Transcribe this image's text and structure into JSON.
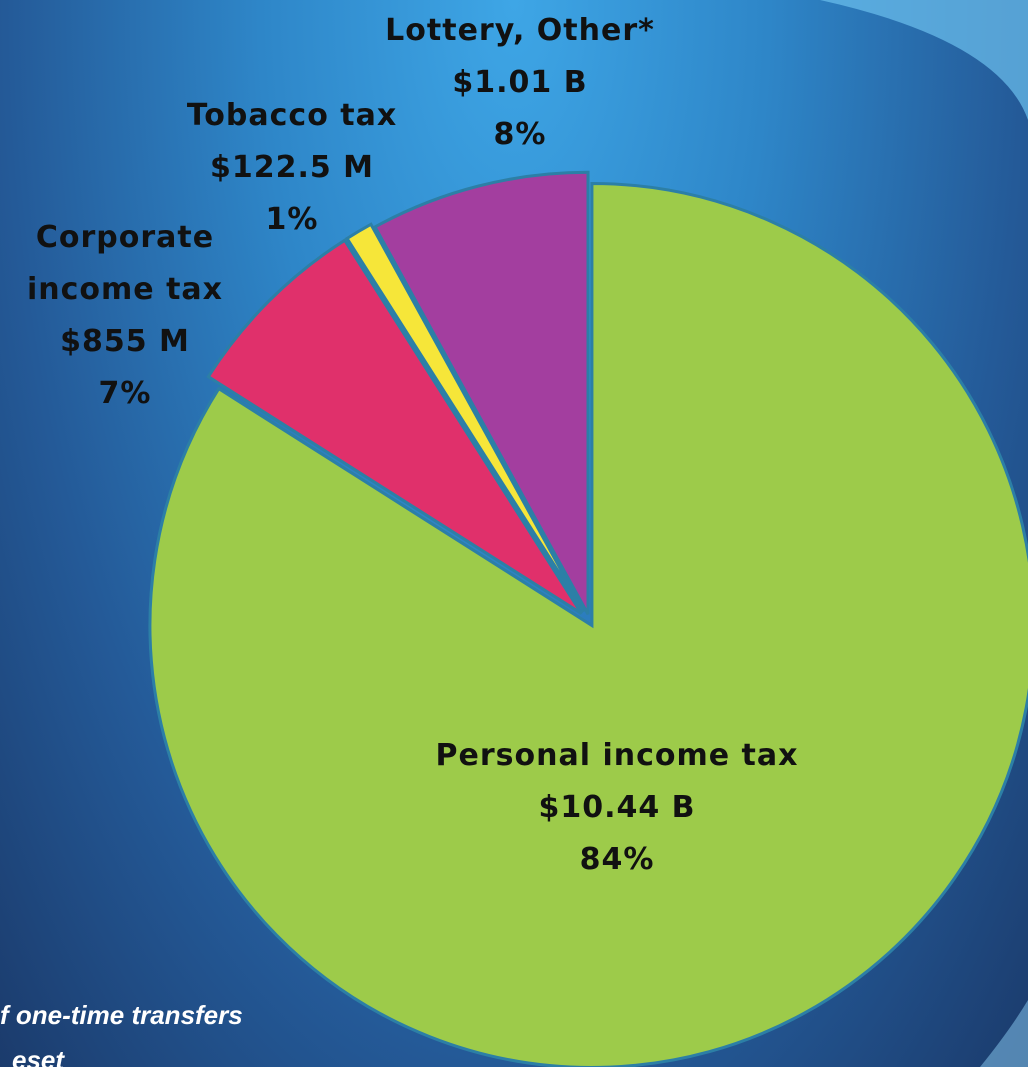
{
  "chart_data": {
    "type": "pie",
    "categories": [
      "Personal income tax",
      "Corporate\nincome tax",
      "Tobacco tax",
      "Lottery, Other*"
    ],
    "amount_labels": [
      "$10.44 B",
      "$855 M",
      "$122.5 M",
      "$1.01 B"
    ],
    "values": [
      84,
      7,
      1,
      8
    ],
    "value_labels": [
      "84%",
      "7%",
      "1%",
      "8%"
    ],
    "colors": [
      "#9dcb4a",
      "#e0306b",
      "#f6e639",
      "#a33e9f"
    ],
    "footnote": [
      "f one-time transfers",
      "eset"
    ]
  }
}
